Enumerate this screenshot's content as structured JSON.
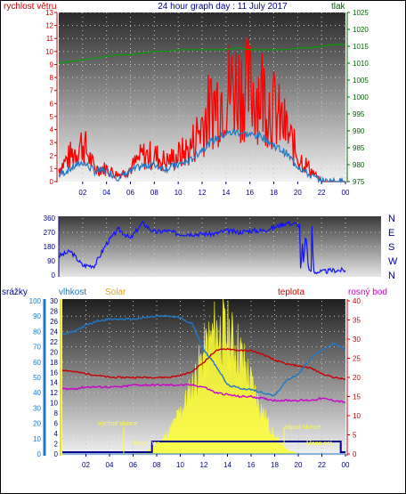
{
  "title": "24 hour graph day : 11 July 2017",
  "top_panel": {
    "left_label": "rychlost větru",
    "right_label": "tlak",
    "left_ticks": [
      "0",
      "1",
      "2",
      "3",
      "4",
      "5",
      "6",
      "7",
      "8",
      "9",
      "10",
      "11",
      "12",
      "13"
    ],
    "right_ticks": [
      "975",
      "980",
      "985",
      "990",
      "995",
      "1000",
      "1005",
      "1010",
      "1015",
      "1020",
      "1025"
    ],
    "left_range": [
      0,
      13
    ],
    "right_range": [
      975,
      1025
    ],
    "colors": {
      "left": "#d00000",
      "right": "#006400",
      "gust": "#ff0000",
      "avg": "#1e78c8",
      "pressure": "#00a000"
    }
  },
  "mid_panel": {
    "left_ticks": [
      "0",
      "90",
      "180",
      "270",
      "360"
    ],
    "right_labels": [
      "N",
      "W",
      "S",
      "E",
      "N"
    ],
    "range": [
      0,
      360
    ],
    "colors": {
      "line": "#1010ff",
      "labels": "#00008b"
    }
  },
  "bottom_panel": {
    "labels": {
      "rain": "srážky",
      "humidity": "vlhkost",
      "solar": "Solar",
      "temperature": "teplota",
      "dewpoint": "rosný bod"
    },
    "rain_ticks": [
      "0",
      "10",
      "20",
      "30",
      "40",
      "50",
      "60",
      "70",
      "80",
      "90",
      "100"
    ],
    "solar_ticks": [
      "0",
      "2",
      "4",
      "6",
      "8",
      "10",
      "12",
      "14",
      "16",
      "18",
      "20",
      "22",
      "24",
      "26",
      "28",
      "30"
    ],
    "temp_ticks": [
      "0",
      "5",
      "10",
      "15",
      "20",
      "25",
      "30",
      "35",
      "40"
    ],
    "annotations": {
      "sunrise": "východ slunce",
      "sunset": "západ slunce",
      "moonrise": "Moon rise",
      "moonset": "Moon set"
    },
    "colors": {
      "rain": "#1e78c8",
      "humidity": "#1e78c8",
      "solar": "#ffff33",
      "temperature": "#c80000",
      "dewpoint": "#cc00cc",
      "moon": "#00008b",
      "solar_label": "#e8a000"
    }
  },
  "x_ticks": [
    "02",
    "04",
    "06",
    "08",
    "10",
    "12",
    "14",
    "16",
    "18",
    "20",
    "22",
    "00"
  ],
  "chart_data": [
    {
      "type": "line",
      "title": "24 hour graph day : 11 July 2017",
      "xlabel": "",
      "x": [
        0,
        1,
        2,
        3,
        4,
        5,
        6,
        7,
        8,
        9,
        10,
        11,
        12,
        13,
        14,
        15,
        16,
        17,
        18,
        19,
        20,
        21,
        22,
        23,
        24
      ],
      "series": [
        {
          "name": "rychlost větru",
          "axis": "left",
          "values": [
            1,
            2,
            3,
            1,
            1,
            0.5,
            1,
            2,
            2,
            1.5,
            2,
            2.5,
            4.5,
            6,
            7,
            7.5,
            7,
            7,
            5.5,
            4,
            2,
            1,
            0,
            0,
            0
          ]
        },
        {
          "name": "rychlost větru",
          "axis": "left",
          "values": [
            0.5,
            1,
            1.5,
            0.8,
            0.8,
            0.3,
            0.8,
            1.2,
            1.3,
            1,
            1.3,
            1.6,
            2.5,
            3.2,
            3.7,
            3.8,
            3.6,
            3.5,
            2.8,
            2.2,
            1.2,
            0.5,
            0,
            0,
            0
          ]
        },
        {
          "name": "tlak",
          "axis": "right",
          "values": [
            1010,
            1010.5,
            1011,
            1011.5,
            1012,
            1012.5,
            1012.5,
            1013,
            1013.5,
            1013.5,
            1014,
            1014,
            1014,
            1014,
            1014,
            1014.5,
            1014,
            1014,
            1014,
            1014,
            1014.5,
            1014.5,
            1015,
            1015.5,
            1015.5
          ]
        }
      ],
      "ylim_left": [
        0,
        13
      ],
      "ylim_right": [
        975,
        1025
      ]
    },
    {
      "type": "line",
      "title": "",
      "x": [
        0,
        1,
        2,
        3,
        4,
        5,
        6,
        7,
        8,
        9,
        10,
        11,
        12,
        13,
        14,
        15,
        16,
        17,
        18,
        19,
        20,
        21,
        22,
        23,
        24
      ],
      "series": [
        {
          "name": "",
          "values": [
            120,
            150,
            60,
            60,
            200,
            290,
            230,
            330,
            270,
            280,
            260,
            260,
            260,
            260,
            280,
            270,
            280,
            280,
            300,
            330,
            320,
            20,
            20,
            30,
            30
          ]
        }
      ],
      "ylim": [
        0,
        360
      ]
    },
    {
      "type": "line",
      "title": "",
      "x": [
        0,
        1,
        2,
        3,
        4,
        5,
        6,
        7,
        8,
        9,
        10,
        11,
        12,
        13,
        14,
        15,
        16,
        17,
        18,
        19,
        20,
        21,
        22,
        23,
        24
      ],
      "series": [
        {
          "name": "vlhkost",
          "axis": "rain",
          "values": [
            78,
            80,
            84,
            87,
            88,
            88,
            88,
            89,
            90,
            90,
            89,
            85,
            68,
            58,
            45,
            43,
            42,
            40,
            38,
            48,
            52,
            62,
            68,
            72,
            68
          ]
        },
        {
          "name": "srážky",
          "axis": "rain",
          "values": [
            0,
            0,
            0,
            0,
            0,
            0,
            0,
            0,
            0,
            0,
            0,
            0,
            0,
            0,
            0,
            0,
            0,
            0,
            0,
            0,
            0,
            0,
            0,
            0,
            0
          ]
        },
        {
          "name": "Solar",
          "axis": "solar",
          "values": [
            0,
            0,
            0,
            0,
            0,
            0,
            0,
            0.5,
            2,
            5,
            10,
            16,
            24,
            30,
            29,
            25,
            17,
            10,
            4,
            1,
            0,
            0,
            0,
            0,
            0
          ]
        },
        {
          "name": "teplota",
          "axis": "temp",
          "values": [
            22,
            21.5,
            21,
            20.5,
            20,
            20,
            20,
            20,
            20,
            20,
            20.5,
            21.5,
            24,
            27,
            27.5,
            27,
            27,
            26,
            24.5,
            23.5,
            23,
            22.5,
            21,
            20,
            19.5
          ]
        },
        {
          "name": "rosný bod",
          "axis": "temp",
          "values": [
            17,
            17,
            17.5,
            17.5,
            17.5,
            17.5,
            18,
            18,
            18,
            18,
            18,
            18,
            17.5,
            16,
            15.5,
            15,
            15,
            14.5,
            14,
            14,
            14,
            14,
            14.5,
            14,
            13.5
          ]
        }
      ],
      "ylim_rain": [
        0,
        100
      ],
      "ylim_solar": [
        0,
        30
      ],
      "ylim_temp": [
        0,
        40
      ]
    }
  ]
}
